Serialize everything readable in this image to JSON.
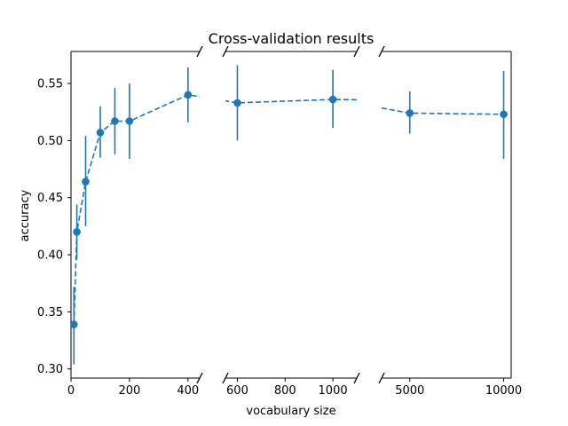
{
  "chart_data": {
    "type": "scatter",
    "title": "Cross-validation results",
    "xlabel": "vocabulary size",
    "ylabel": "accuracy",
    "ylim": [
      0.292,
      0.578
    ],
    "yticks": [
      "0.30",
      "0.35",
      "0.40",
      "0.45",
      "0.50",
      "0.55"
    ],
    "color": "#1f77b4",
    "line_style": "dashed",
    "axis_break": true,
    "panels": [
      {
        "xlim": [
          0,
          440
        ],
        "xticks": [
          0,
          200,
          400
        ]
      },
      {
        "xlim": [
          550,
          1100
        ],
        "xticks": [
          600,
          800,
          1000
        ]
      },
      {
        "xlim": [
          3500,
          10400
        ],
        "xticks": [
          5000,
          10000
        ]
      }
    ],
    "series": [
      {
        "points": [
          {
            "x": 10,
            "y": 0.339,
            "err_low": 0.304,
            "err_high": 0.372
          },
          {
            "x": 20,
            "y": 0.42,
            "err_low": 0.396,
            "err_high": 0.444
          },
          {
            "x": 50,
            "y": 0.464,
            "err_low": 0.425,
            "err_high": 0.504
          },
          {
            "x": 100,
            "y": 0.507,
            "err_low": 0.485,
            "err_high": 0.53
          },
          {
            "x": 150,
            "y": 0.517,
            "err_low": 0.488,
            "err_high": 0.546
          },
          {
            "x": 200,
            "y": 0.517,
            "err_low": 0.484,
            "err_high": 0.55
          },
          {
            "x": 400,
            "y": 0.54,
            "err_low": 0.516,
            "err_high": 0.564
          },
          {
            "x": 600,
            "y": 0.533,
            "err_low": 0.5,
            "err_high": 0.566
          },
          {
            "x": 1000,
            "y": 0.536,
            "err_low": 0.511,
            "err_high": 0.562
          },
          {
            "x": 5000,
            "y": 0.524,
            "err_low": 0.506,
            "err_high": 0.543
          },
          {
            "x": 10000,
            "y": 0.523,
            "err_low": 0.484,
            "err_high": 0.561
          }
        ]
      }
    ]
  }
}
